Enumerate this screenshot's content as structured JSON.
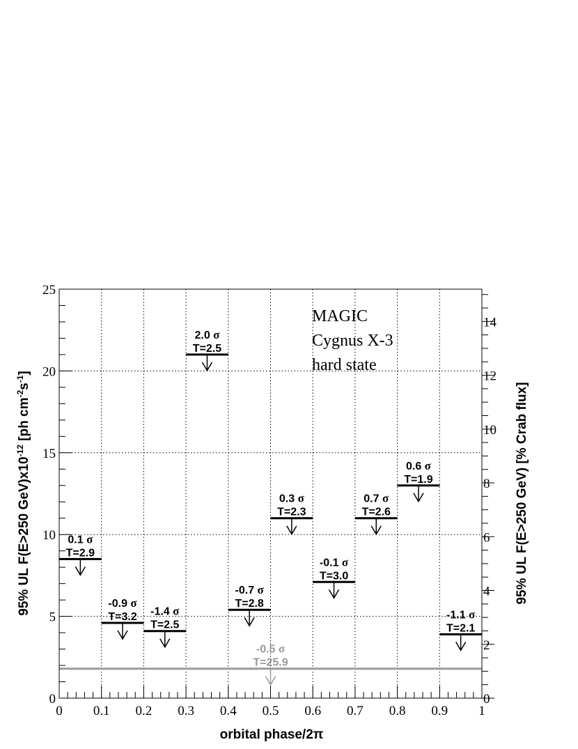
{
  "chart_data": {
    "type": "scatter",
    "subtype": "upper-limit-bins",
    "xlabel": "orbital phase/2π",
    "ylabel": "95% UL F(E>250 GeV)x10",
    "ylabel_exp1": "-12",
    "ylabel_mid": " [ph cm",
    "ylabel_exp2": "-2",
    "ylabel_mid2": "s",
    "ylabel_exp3": "-1",
    "ylabel_end": "]",
    "y2label": "95% UL F(E>250 GeV) [% Crab flux]",
    "xlim": [
      0,
      1
    ],
    "ylim": [
      0,
      25
    ],
    "y2lim": [
      0,
      15.2
    ],
    "x_ticks": [
      "0",
      "0.1",
      "0.2",
      "0.3",
      "0.4",
      "0.5",
      "0.6",
      "0.7",
      "0.8",
      "0.9",
      "1"
    ],
    "y_ticks": [
      "0",
      "5",
      "10",
      "15",
      "20",
      "25"
    ],
    "y2_ticks": [
      "0",
      "2",
      "4",
      "6",
      "8",
      "10",
      "12",
      "14"
    ],
    "grid": true,
    "annotation": [
      "MAGIC",
      "Cygnus X-3",
      "hard state"
    ],
    "bins": [
      {
        "x0": 0.0,
        "x1": 0.1,
        "value": 8.5,
        "sigma": "0.1",
        "T": "T=2.9"
      },
      {
        "x0": 0.1,
        "x1": 0.2,
        "value": 4.6,
        "sigma": "-0.9",
        "T": "T=3.2"
      },
      {
        "x0": 0.2,
        "x1": 0.3,
        "value": 4.1,
        "sigma": "-1.4",
        "T": "T=2.5"
      },
      {
        "x0": 0.3,
        "x1": 0.4,
        "value": 21.0,
        "sigma": "2.0",
        "T": "T=2.5"
      },
      {
        "x0": 0.4,
        "x1": 0.5,
        "value": 5.4,
        "sigma": "-0.7",
        "T": "T=2.8"
      },
      {
        "x0": 0.5,
        "x1": 0.6,
        "value": 11.0,
        "sigma": "0.3",
        "T": "T=2.3"
      },
      {
        "x0": 0.6,
        "x1": 0.7,
        "value": 7.1,
        "sigma": "-0.1",
        "T": "T=3.0"
      },
      {
        "x0": 0.7,
        "x1": 0.8,
        "value": 11.0,
        "sigma": "0.7",
        "T": "T=2.6"
      },
      {
        "x0": 0.8,
        "x1": 0.9,
        "value": 13.0,
        "sigma": "0.6",
        "T": "T=1.9"
      },
      {
        "x0": 0.9,
        "x1": 1.0,
        "value": 3.9,
        "sigma": "-1.1",
        "T": "T=2.1"
      }
    ],
    "total": {
      "x0": 0.0,
      "x1": 1.0,
      "value": 1.8,
      "sigma": "-0.5",
      "T": "T=25.9",
      "color": "#999999"
    },
    "sigma_symbol": "σ",
    "colors": {
      "limit": "#000000",
      "total": "#999999",
      "grid": "#000000"
    }
  }
}
